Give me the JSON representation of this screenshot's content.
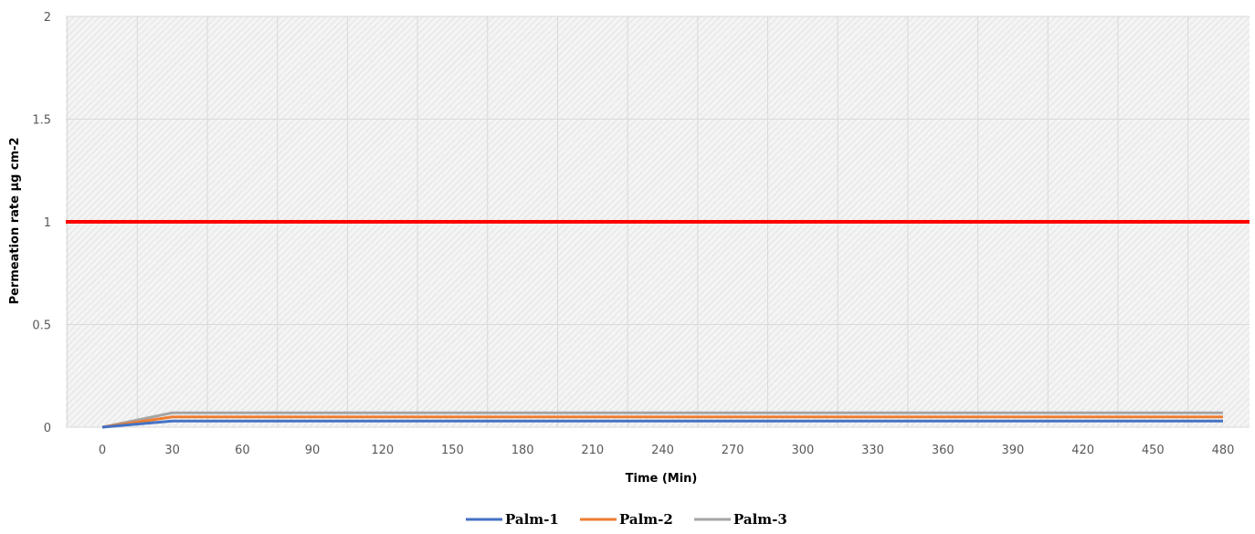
{
  "chart_data": {
    "type": "line",
    "title": "",
    "xlabel": "Time (Min)",
    "ylabel": "Permeation rate µg cm-2",
    "x": [
      0,
      30,
      60,
      90,
      120,
      150,
      180,
      210,
      240,
      270,
      300,
      330,
      360,
      390,
      420,
      450,
      480
    ],
    "xlim": [
      0,
      480
    ],
    "ylim": [
      0,
      2
    ],
    "yticks": [
      0,
      0.5,
      1,
      1.5,
      2
    ],
    "ytick_labels": [
      "0",
      "0.5",
      "1",
      "1.5",
      "2"
    ],
    "grid": true,
    "legend_position": "bottom",
    "threshold": {
      "value": 1,
      "color": "#ff0000"
    },
    "series": [
      {
        "name": "Palm-1",
        "color": "#4472c4",
        "values": [
          0,
          0.03,
          0.03,
          0.03,
          0.03,
          0.03,
          0.03,
          0.03,
          0.03,
          0.03,
          0.03,
          0.03,
          0.03,
          0.03,
          0.03,
          0.03,
          0.03
        ]
      },
      {
        "name": "Palm-2",
        "color": "#ed7d31",
        "values": [
          0,
          0.05,
          0.05,
          0.05,
          0.05,
          0.05,
          0.05,
          0.05,
          0.05,
          0.05,
          0.05,
          0.05,
          0.05,
          0.05,
          0.05,
          0.05,
          0.05
        ]
      },
      {
        "name": "Palm-3",
        "color": "#a5a5a5",
        "values": [
          0,
          0.07,
          0.07,
          0.07,
          0.07,
          0.07,
          0.07,
          0.07,
          0.07,
          0.07,
          0.07,
          0.07,
          0.07,
          0.07,
          0.07,
          0.07,
          0.07
        ]
      }
    ],
    "plot_background": "#f2f2f2"
  }
}
